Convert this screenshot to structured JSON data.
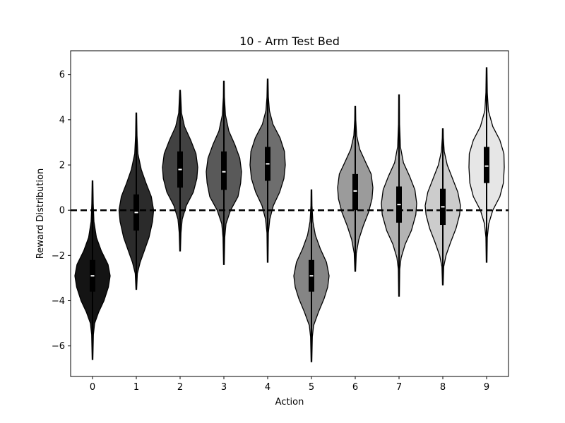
{
  "chart_data": {
    "type": "violin",
    "title": "10 - Arm Test Bed",
    "xlabel": "Action",
    "ylabel": "Reward Distribution",
    "ylim": [
      -7.35,
      7.05
    ],
    "yticks": [
      -6,
      -4,
      -2,
      0,
      2,
      4,
      6
    ],
    "ytick_labels": [
      "−6",
      "−4",
      "−2",
      "0",
      "2",
      "4",
      "6"
    ],
    "categories": [
      "0",
      "1",
      "2",
      "3",
      "4",
      "5",
      "6",
      "7",
      "8",
      "9"
    ],
    "reference_line": {
      "y": 0,
      "style": "dashed",
      "color": "#000000"
    },
    "grid": false,
    "legend": "none",
    "violins": [
      {
        "category": "0",
        "color": "#141414",
        "median": -2.9,
        "q1": -3.6,
        "q3": -2.2,
        "min": -6.6,
        "max": 1.3,
        "profile": [
          [
            -6.6,
            0.02
          ],
          [
            -5.5,
            0.05
          ],
          [
            -5.0,
            0.12
          ],
          [
            -4.5,
            0.35
          ],
          [
            -4.0,
            0.65
          ],
          [
            -3.4,
            0.9
          ],
          [
            -2.9,
            1.0
          ],
          [
            -2.4,
            0.88
          ],
          [
            -1.8,
            0.5
          ],
          [
            -1.2,
            0.22
          ],
          [
            -0.5,
            0.08
          ],
          [
            0.3,
            0.04
          ],
          [
            1.3,
            0.02
          ]
        ]
      },
      {
        "category": "1",
        "color": "#2b2b2b",
        "median": -0.1,
        "q1": -0.9,
        "q3": 0.7,
        "min": -3.5,
        "max": 4.3,
        "profile": [
          [
            -3.5,
            0.02
          ],
          [
            -2.8,
            0.06
          ],
          [
            -2.3,
            0.22
          ],
          [
            -1.8,
            0.45
          ],
          [
            -1.2,
            0.72
          ],
          [
            -0.5,
            0.92
          ],
          [
            0.0,
            0.98
          ],
          [
            0.6,
            0.85
          ],
          [
            1.2,
            0.55
          ],
          [
            1.8,
            0.28
          ],
          [
            2.5,
            0.09
          ],
          [
            3.3,
            0.04
          ],
          [
            4.3,
            0.02
          ]
        ]
      },
      {
        "category": "2",
        "color": "#424242",
        "median": 1.8,
        "q1": 1.0,
        "q3": 2.6,
        "min": -1.8,
        "max": 5.3,
        "profile": [
          [
            -1.8,
            0.02
          ],
          [
            -1.0,
            0.05
          ],
          [
            -0.4,
            0.12
          ],
          [
            0.2,
            0.35
          ],
          [
            0.8,
            0.75
          ],
          [
            1.4,
            0.95
          ],
          [
            1.9,
            1.0
          ],
          [
            2.5,
            0.9
          ],
          [
            3.1,
            0.6
          ],
          [
            3.7,
            0.25
          ],
          [
            4.3,
            0.08
          ],
          [
            5.3,
            0.02
          ]
        ]
      },
      {
        "category": "3",
        "color": "#595959",
        "median": 1.7,
        "q1": 0.9,
        "q3": 2.6,
        "min": -2.4,
        "max": 5.7,
        "profile": [
          [
            -2.4,
            0.02
          ],
          [
            -1.2,
            0.05
          ],
          [
            -0.6,
            0.12
          ],
          [
            0.0,
            0.38
          ],
          [
            0.6,
            0.8
          ],
          [
            1.2,
            0.95
          ],
          [
            1.7,
            1.0
          ],
          [
            2.3,
            0.9
          ],
          [
            2.9,
            0.62
          ],
          [
            3.5,
            0.28
          ],
          [
            4.2,
            0.09
          ],
          [
            5.0,
            0.03
          ],
          [
            5.7,
            0.02
          ]
        ]
      },
      {
        "category": "4",
        "color": "#6e6e6e",
        "median": 2.05,
        "q1": 1.3,
        "q3": 2.8,
        "min": -2.3,
        "max": 5.8,
        "profile": [
          [
            -2.3,
            0.02
          ],
          [
            -1.0,
            0.04
          ],
          [
            -0.4,
            0.12
          ],
          [
            0.2,
            0.32
          ],
          [
            0.8,
            0.68
          ],
          [
            1.4,
            0.92
          ],
          [
            2.0,
            1.0
          ],
          [
            2.6,
            0.95
          ],
          [
            3.2,
            0.7
          ],
          [
            3.8,
            0.3
          ],
          [
            4.4,
            0.1
          ],
          [
            5.0,
            0.04
          ],
          [
            5.8,
            0.02
          ]
        ]
      },
      {
        "category": "5",
        "color": "#858585",
        "median": -2.9,
        "q1": -3.6,
        "q3": -2.2,
        "min": -6.7,
        "max": 0.9,
        "profile": [
          [
            -6.7,
            0.02
          ],
          [
            -5.6,
            0.05
          ],
          [
            -5.1,
            0.12
          ],
          [
            -4.5,
            0.4
          ],
          [
            -3.9,
            0.72
          ],
          [
            -3.4,
            0.92
          ],
          [
            -2.9,
            1.0
          ],
          [
            -2.3,
            0.85
          ],
          [
            -1.7,
            0.5
          ],
          [
            -1.1,
            0.22
          ],
          [
            -0.5,
            0.08
          ],
          [
            0.2,
            0.03
          ],
          [
            0.9,
            0.02
          ]
        ]
      },
      {
        "category": "6",
        "color": "#9b9b9b",
        "median": 0.85,
        "q1": 0.0,
        "q3": 1.6,
        "min": -2.7,
        "max": 4.6,
        "profile": [
          [
            -2.7,
            0.02
          ],
          [
            -1.9,
            0.06
          ],
          [
            -1.3,
            0.2
          ],
          [
            -0.7,
            0.45
          ],
          [
            -0.1,
            0.75
          ],
          [
            0.5,
            0.95
          ],
          [
            1.0,
            1.0
          ],
          [
            1.6,
            0.9
          ],
          [
            2.1,
            0.6
          ],
          [
            2.7,
            0.25
          ],
          [
            3.3,
            0.08
          ],
          [
            4.0,
            0.03
          ],
          [
            4.6,
            0.02
          ]
        ]
      },
      {
        "category": "7",
        "color": "#b3b3b3",
        "median": 0.25,
        "q1": -0.55,
        "q3": 1.05,
        "min": -3.8,
        "max": 5.1,
        "profile": [
          [
            -3.8,
            0.02
          ],
          [
            -2.6,
            0.04
          ],
          [
            -2.1,
            0.12
          ],
          [
            -1.5,
            0.35
          ],
          [
            -0.9,
            0.7
          ],
          [
            -0.2,
            0.95
          ],
          [
            0.3,
            1.0
          ],
          [
            0.9,
            0.9
          ],
          [
            1.5,
            0.6
          ],
          [
            2.1,
            0.25
          ],
          [
            2.8,
            0.08
          ],
          [
            3.8,
            0.03
          ],
          [
            5.1,
            0.02
          ]
        ]
      },
      {
        "category": "8",
        "color": "#cccccc",
        "median": 0.15,
        "q1": -0.65,
        "q3": 0.95,
        "min": -3.3,
        "max": 3.6,
        "profile": [
          [
            -3.3,
            0.02
          ],
          [
            -2.5,
            0.05
          ],
          [
            -2.0,
            0.18
          ],
          [
            -1.4,
            0.45
          ],
          [
            -0.8,
            0.75
          ],
          [
            -0.2,
            0.95
          ],
          [
            0.2,
            1.0
          ],
          [
            0.8,
            0.85
          ],
          [
            1.4,
            0.55
          ],
          [
            2.0,
            0.25
          ],
          [
            2.6,
            0.08
          ],
          [
            3.2,
            0.03
          ],
          [
            3.6,
            0.02
          ]
        ]
      },
      {
        "category": "9",
        "color": "#e6e6e6",
        "median": 1.95,
        "q1": 1.2,
        "q3": 2.8,
        "min": -2.3,
        "max": 6.3,
        "profile": [
          [
            -2.3,
            0.02
          ],
          [
            -1.2,
            0.04
          ],
          [
            -0.6,
            0.12
          ],
          [
            0.0,
            0.35
          ],
          [
            0.6,
            0.75
          ],
          [
            1.2,
            0.95
          ],
          [
            1.9,
            1.0
          ],
          [
            2.5,
            0.98
          ],
          [
            3.1,
            0.75
          ],
          [
            3.7,
            0.35
          ],
          [
            4.4,
            0.1
          ],
          [
            5.2,
            0.04
          ],
          [
            6.3,
            0.02
          ]
        ]
      }
    ]
  }
}
